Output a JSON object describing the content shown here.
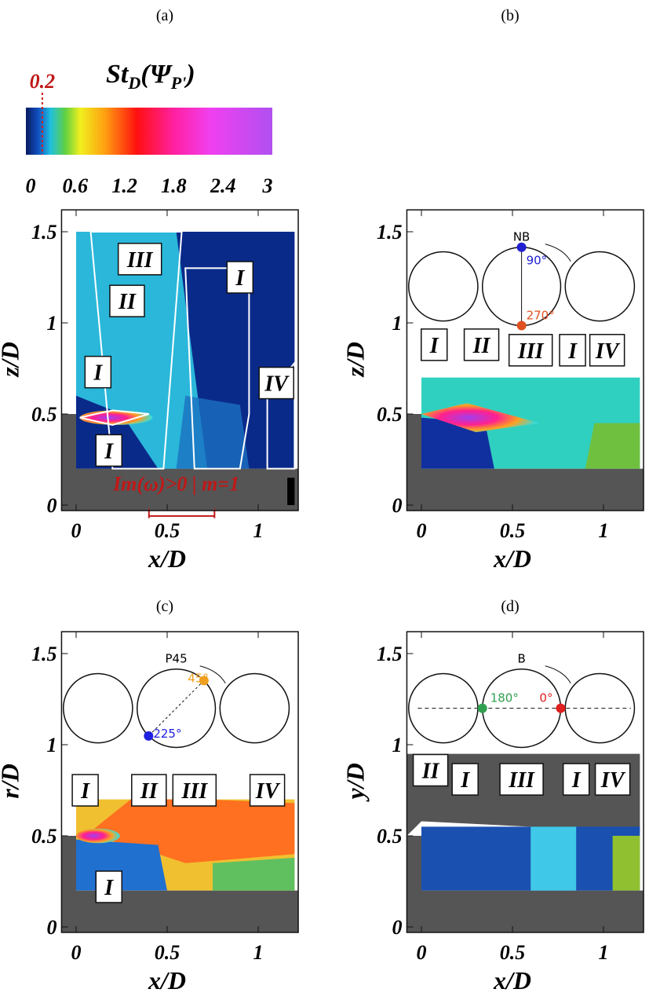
{
  "colorbar": {
    "title": {
      "base": "St",
      "sub": "D",
      "open": "(Ψ",
      "sub2": "P'",
      "close": ")"
    },
    "marker": 0.2,
    "ticks": [
      0,
      0.6,
      1.2,
      1.8,
      2.4,
      3
    ]
  },
  "panels": [
    {
      "label": "(a)",
      "xlabel": "x/D",
      "ylabel": "z/D",
      "xlim": [
        -0.08,
        1.22
      ],
      "ylim": [
        -0.03,
        1.62
      ],
      "xticks": [
        0,
        0.5,
        1
      ],
      "yticks": [
        0,
        0.5,
        1,
        1.5
      ],
      "regions": [
        "III",
        "II",
        "I",
        "I",
        "I",
        "IV"
      ],
      "annotation": "Im(ω)>0 | m=1"
    },
    {
      "label": "(b)",
      "xlabel": "x/D",
      "ylabel": "z/D",
      "xlim": [
        -0.08,
        1.22
      ],
      "ylim": [
        -0.03,
        1.62
      ],
      "xticks": [
        0,
        0.5,
        1
      ],
      "yticks": [
        0,
        0.5,
        1,
        1.5
      ],
      "diagram": {
        "name": "NB",
        "angles": [
          "90°",
          "270°"
        ]
      },
      "regions": [
        "I",
        "II",
        "III",
        "I",
        "IV"
      ]
    },
    {
      "label": "(c)",
      "xlabel": "x/D",
      "ylabel": "r/D",
      "xlim": [
        -0.08,
        1.22
      ],
      "ylim": [
        -0.03,
        1.62
      ],
      "xticks": [
        0,
        0.5,
        1
      ],
      "yticks": [
        0,
        0.5,
        1,
        1.5
      ],
      "diagram": {
        "name": "P45",
        "angles": [
          "45°",
          "225°"
        ]
      },
      "regions": [
        "I",
        "II",
        "III",
        "IV",
        "I"
      ]
    },
    {
      "label": "(d)",
      "xlabel": "x/D",
      "ylabel": "y/D",
      "xlim": [
        -0.08,
        1.22
      ],
      "ylim": [
        -0.03,
        1.62
      ],
      "xticks": [
        0,
        0.5,
        1
      ],
      "yticks": [
        0,
        0.5,
        1,
        1.5
      ],
      "diagram": {
        "name": "B",
        "angles": [
          "180°",
          "0°"
        ]
      },
      "regions": [
        "II",
        "I",
        "III",
        "I",
        "IV"
      ]
    }
  ]
}
